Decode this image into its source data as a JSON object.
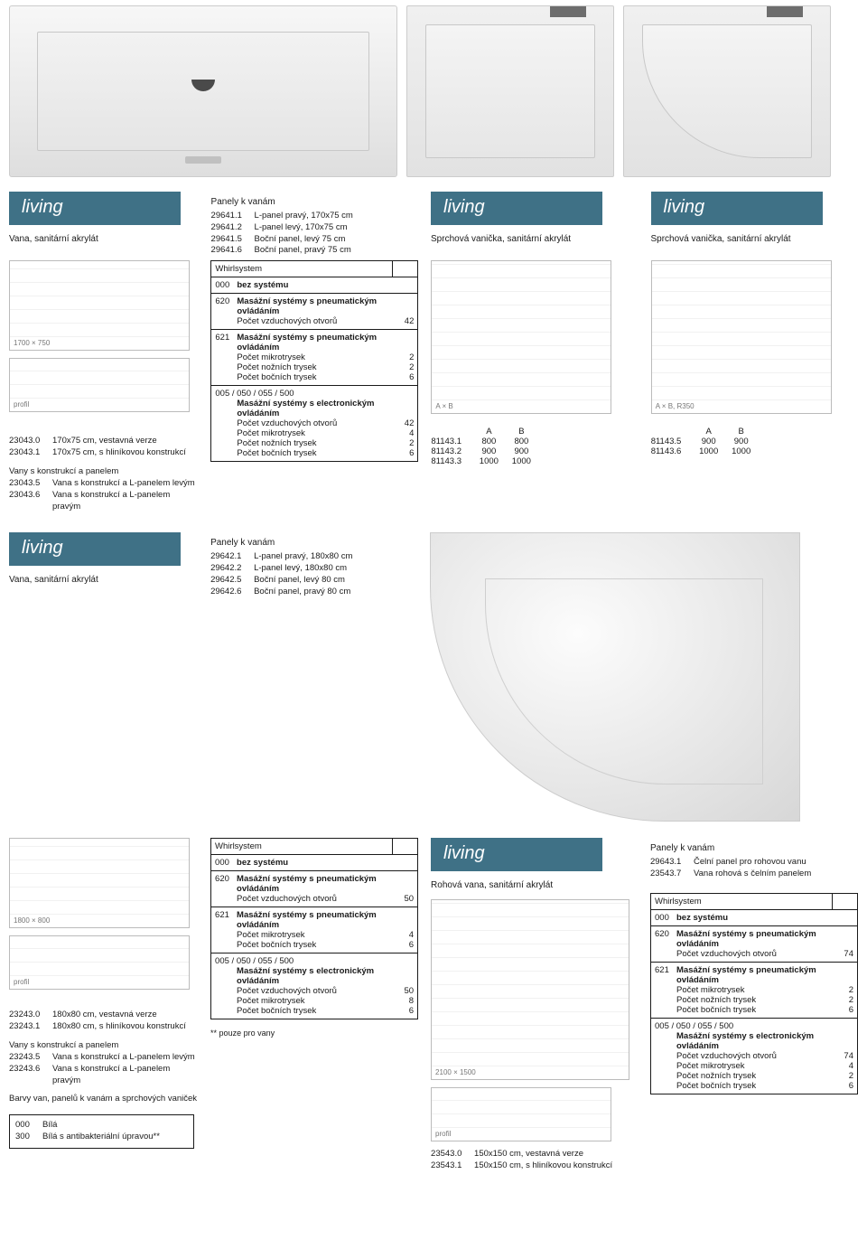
{
  "brand": "living",
  "section1": {
    "subtitle": "Vana, sanitární akrylát",
    "panels_title": "Panely k vanám",
    "panels": [
      {
        "code": "29641.1",
        "desc": "L-panel pravý, 170x75 cm"
      },
      {
        "code": "29641.2",
        "desc": "L-panel levý, 170x75 cm"
      },
      {
        "code": "29641.5",
        "desc": "Boční panel, levý 75 cm"
      },
      {
        "code": "29641.6",
        "desc": "Boční panel, pravý 75 cm"
      }
    ],
    "tray_subtitle": "Sprchová vanička, sanitární akrylát",
    "variants": [
      {
        "code": "23043.0",
        "desc": "170x75 cm, vestavná verze"
      },
      {
        "code": "23043.1",
        "desc": "170x75 cm, s hliníkovou konstrukcí"
      }
    ],
    "variants2_title": "Vany s konstrukcí a panelem",
    "variants2": [
      {
        "code": "23043.5",
        "desc": "Vana s konstrukcí a L-panelem levým"
      },
      {
        "code": "23043.6",
        "desc": "Vana s konstrukcí a L-panelem pravým"
      }
    ],
    "whirl_label": "Whirlsystem",
    "whirl": [
      {
        "num": "000",
        "title": "bez systému",
        "lines": []
      },
      {
        "num": "620",
        "title": "Masážní systémy s pneumatickým ovládáním",
        "lines": [
          {
            "k": "Počet vzduchových otvorů",
            "v": "42"
          }
        ]
      },
      {
        "num": "621",
        "title": "Masážní systémy s pneumatickým ovládáním",
        "lines": [
          {
            "k": "Počet mikrotrysek",
            "v": "2"
          },
          {
            "k": "Počet nožních trysek",
            "v": "2"
          },
          {
            "k": "Počet bočních trysek",
            "v": "6"
          }
        ]
      },
      {
        "num": "005 / 050 / 055 / 500",
        "title": "Masážní systémy s electronickým ovládáním",
        "lines": [
          {
            "k": "Počet vzduchových otvorů",
            "v": "42"
          },
          {
            "k": "Počet mikrotrysek",
            "v": "4"
          },
          {
            "k": "Počet nožních trysek",
            "v": "2"
          },
          {
            "k": "Počet bočních trysek",
            "v": "6"
          }
        ]
      }
    ],
    "dim1": {
      "cols": [
        "A",
        "B"
      ],
      "rows": [
        {
          "c": "81143.1",
          "a": "800",
          "b": "800"
        },
        {
          "c": "81143.2",
          "a": "900",
          "b": "900"
        },
        {
          "c": "81143.3",
          "a": "1000",
          "b": "1000"
        }
      ]
    },
    "dim2": {
      "cols": [
        "A",
        "B"
      ],
      "rows": [
        {
          "c": "81143.5",
          "a": "900",
          "b": "900"
        },
        {
          "c": "81143.6",
          "a": "1000",
          "b": "1000"
        }
      ]
    }
  },
  "section2": {
    "subtitle": "Vana, sanitární akrylát",
    "panels_title": "Panely k vanám",
    "panels": [
      {
        "code": "29642.1",
        "desc": "L-panel pravý, 180x80 cm"
      },
      {
        "code": "29642.2",
        "desc": "L-panel levý, 180x80 cm"
      },
      {
        "code": "29642.5",
        "desc": "Boční panel, levý 80 cm"
      },
      {
        "code": "29642.6",
        "desc": "Boční panel, pravý 80 cm"
      }
    ],
    "variants": [
      {
        "code": "23243.0",
        "desc": "180x80 cm, vestavná verze"
      },
      {
        "code": "23243.1",
        "desc": "180x80 cm, s hliníkovou konstrukcí"
      }
    ],
    "variants2_title": "Vany s konstrukcí a panelem",
    "variants2": [
      {
        "code": "23243.5",
        "desc": "Vana s konstrukcí a L-panelem levým"
      },
      {
        "code": "23243.6",
        "desc": "Vana s konstrukcí a L-panelem pravým"
      }
    ],
    "colors_title": "Barvy van, panelů k vanám a sprchových vaniček",
    "colors": [
      {
        "code": "000",
        "desc": "Bílá"
      },
      {
        "code": "300",
        "desc": "Bílá s antibakteriální úpravou**"
      }
    ],
    "whirl_label": "Whirlsystem",
    "whirl": [
      {
        "num": "000",
        "title": "bez systému",
        "lines": []
      },
      {
        "num": "620",
        "title": "Masážní systémy s pneumatickým ovládáním",
        "lines": [
          {
            "k": "Počet vzduchových otvorů",
            "v": "50"
          }
        ]
      },
      {
        "num": "621",
        "title": "Masážní systémy s pneumatickým ovládáním",
        "lines": [
          {
            "k": "Počet mikrotrysek",
            "v": "4"
          },
          {
            "k": "Počet bočních trysek",
            "v": "6"
          }
        ]
      },
      {
        "num": "005 / 050 / 055 / 500",
        "title": "Masážní systémy s electronickým ovládáním",
        "lines": [
          {
            "k": "Počet vzduchových otvorů",
            "v": "50"
          },
          {
            "k": "Počet mikrotrysek",
            "v": "8"
          },
          {
            "k": "Počet bočních trysek",
            "v": "6"
          }
        ]
      }
    ],
    "footnote": "** pouze pro vany",
    "corner_subtitle": "Rohová vana, sanitární akrylát",
    "corner_variants": [
      {
        "code": "23543.0",
        "desc": "150x150 cm, vestavná verze"
      },
      {
        "code": "23543.1",
        "desc": "150x150 cm, s hliníkovou konstrukcí"
      }
    ],
    "corner_panels_title": "Panely k vanám",
    "corner_panels": [
      {
        "code": "29643.1",
        "desc": "Čelní panel pro rohovou vanu"
      },
      {
        "code": "23543.7",
        "desc": "Vana rohová s čelním panelem"
      }
    ],
    "corner_whirl_label": "Whirlsystem",
    "corner_whirl": [
      {
        "num": "000",
        "title": "bez systému",
        "lines": []
      },
      {
        "num": "620",
        "title": "Masážní systémy s pneumatickým ovládáním",
        "lines": [
          {
            "k": "Počet vzduchových otvorů",
            "v": "74"
          }
        ]
      },
      {
        "num": "621",
        "title": "Masážní systémy s pneumatickým ovládáním",
        "lines": [
          {
            "k": "Počet mikrotrysek",
            "v": "2"
          },
          {
            "k": "Počet nožních trysek",
            "v": "2"
          },
          {
            "k": "Počet bočních trysek",
            "v": "6"
          }
        ]
      },
      {
        "num": "005 / 050 / 055 / 500",
        "title": "Masážní systémy s electronickým ovládáním",
        "lines": [
          {
            "k": "Počet vzduchových otvorů",
            "v": "74"
          },
          {
            "k": "Počet mikrotrysek",
            "v": "4"
          },
          {
            "k": "Počet nožních trysek",
            "v": "2"
          },
          {
            "k": "Počet bočních trysek",
            "v": "6"
          }
        ]
      }
    ]
  }
}
